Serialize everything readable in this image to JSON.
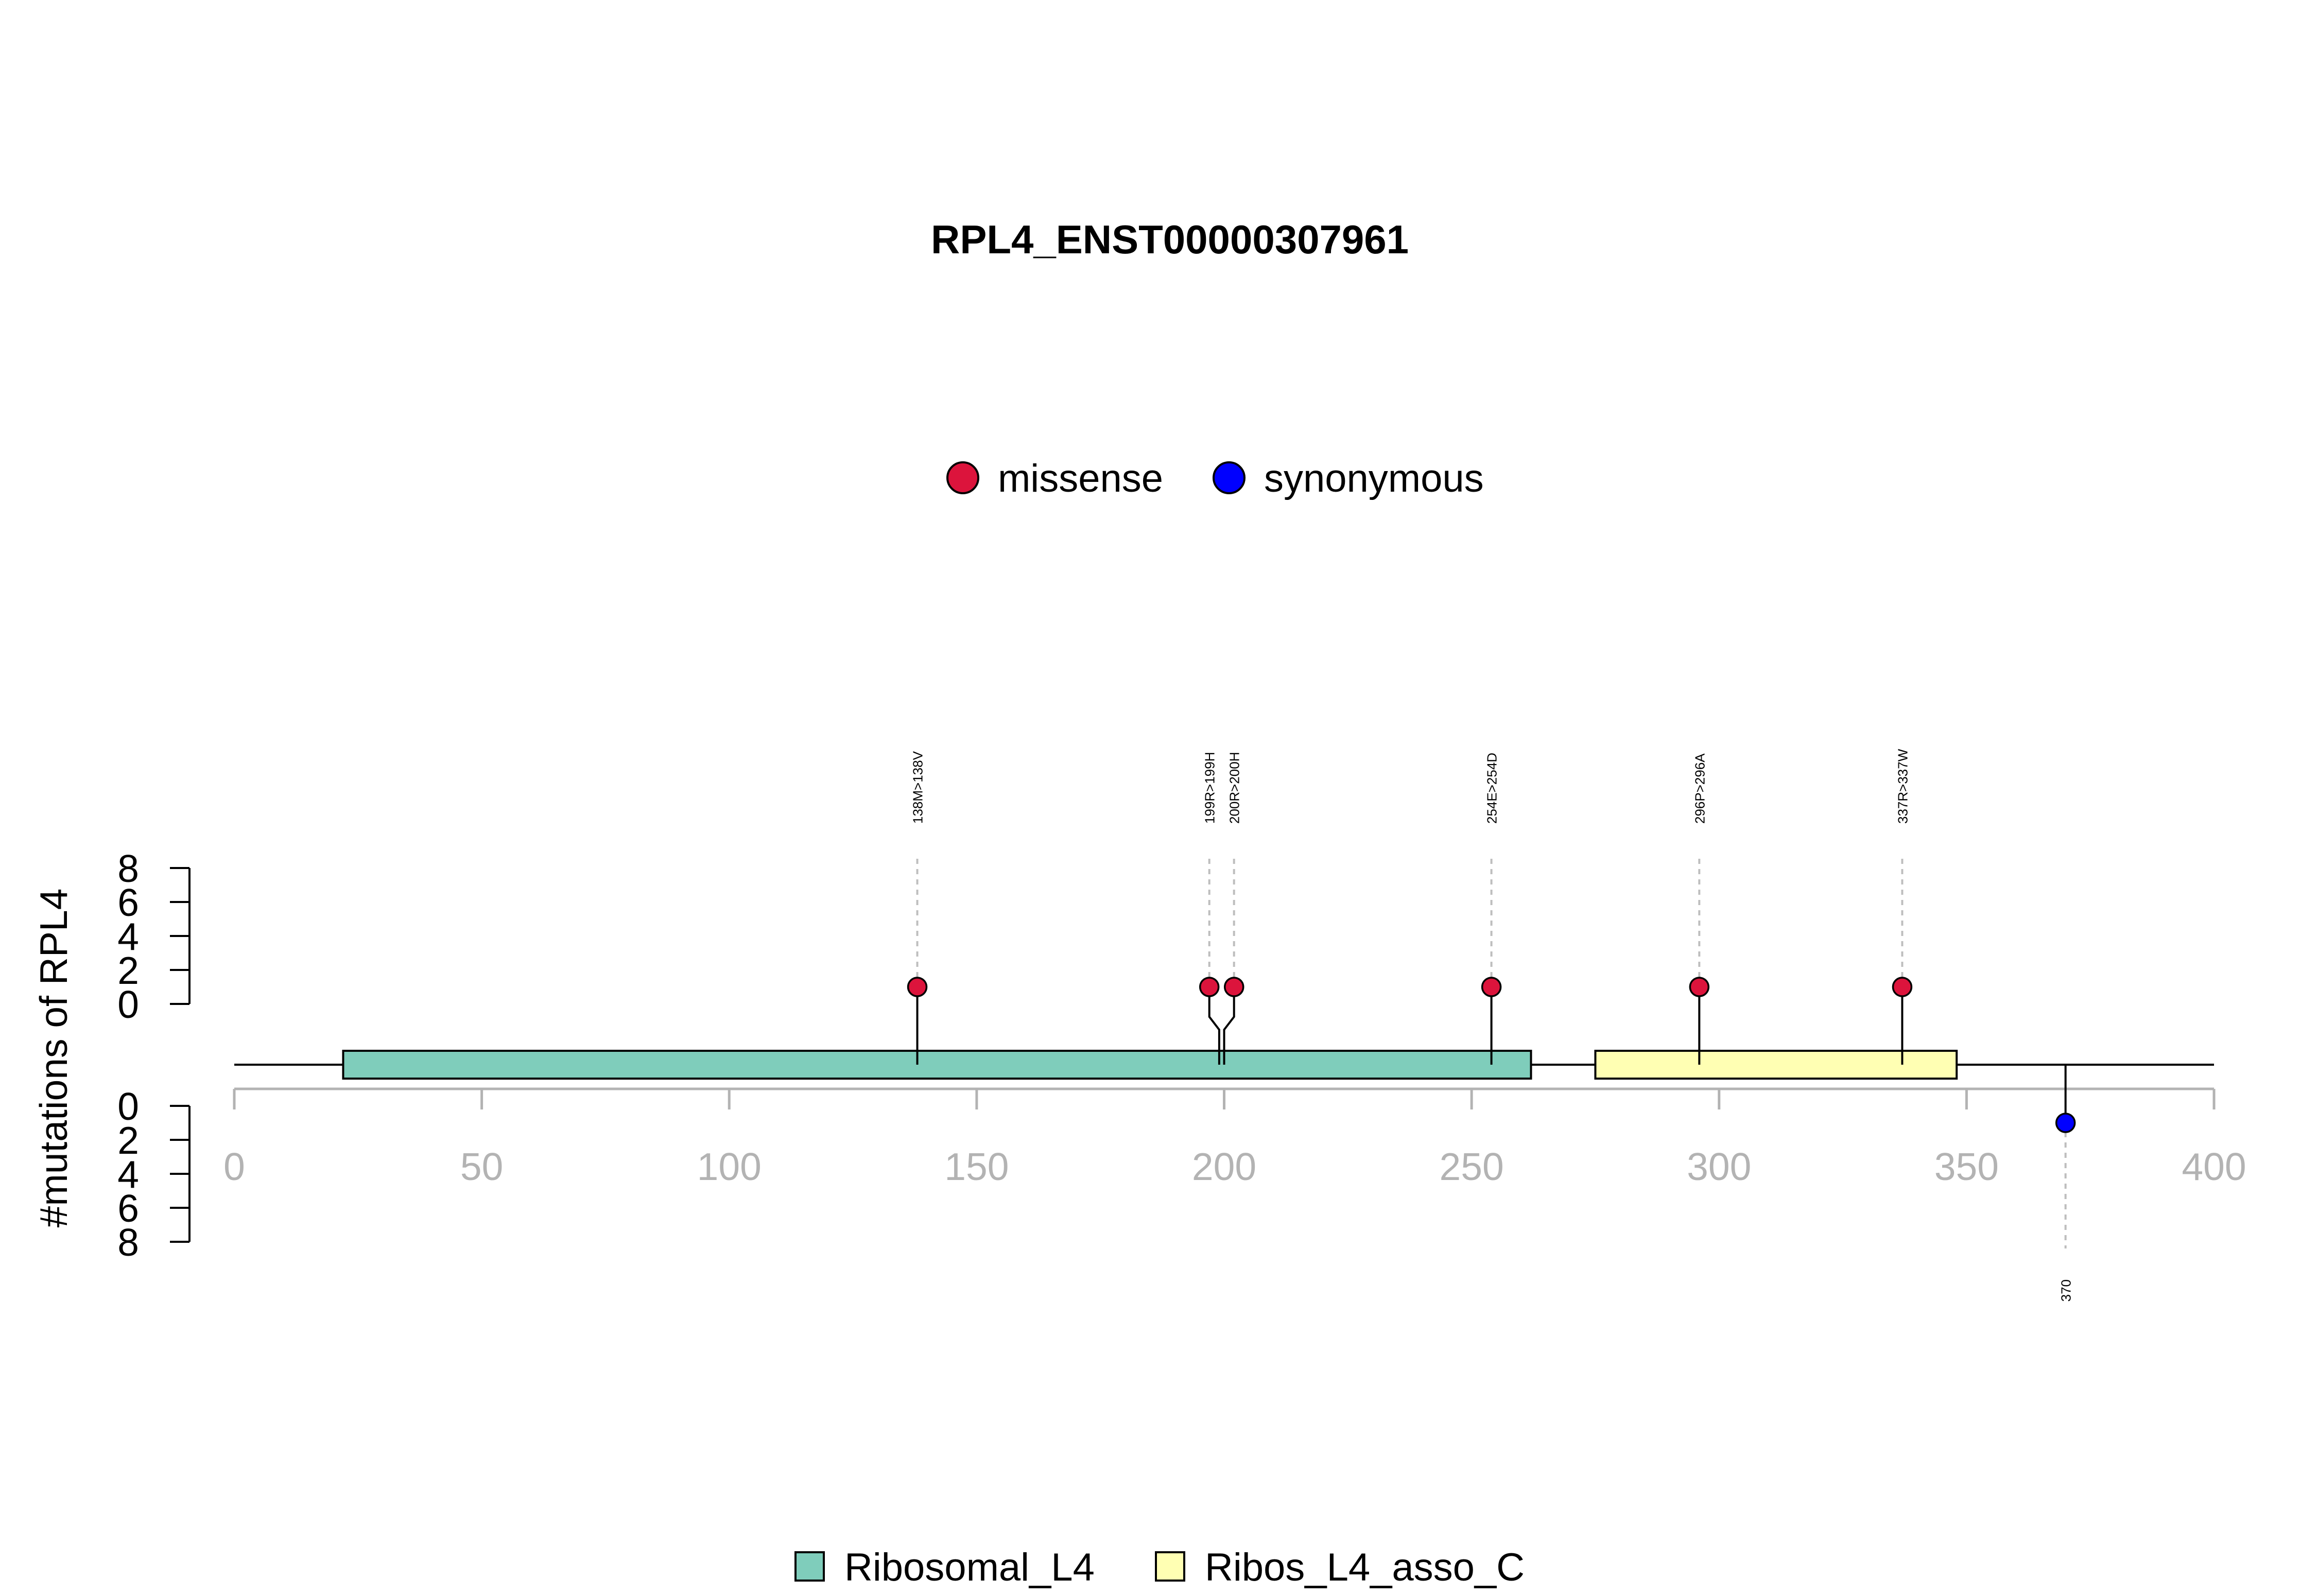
{
  "chart_data": {
    "type": "lollipop",
    "title": "RPL4_ENST00000307961",
    "ylabel": "#mutations of RPL4",
    "xlim": [
      0,
      400
    ],
    "x_ticks": [
      0,
      50,
      100,
      150,
      200,
      250,
      300,
      350,
      400
    ],
    "y_ticks_upper": [
      0,
      2,
      4,
      6,
      8
    ],
    "y_ticks_lower": [
      0,
      2,
      4,
      6,
      8
    ],
    "protein_length": 400,
    "legend_mutations": [
      {
        "name": "missense",
        "color": "#dc143c"
      },
      {
        "name": "synonymous",
        "color": "#0000ff"
      }
    ],
    "legend_domains": [
      {
        "name": "Ribosomal_L4",
        "color": "#7fcdbb"
      },
      {
        "name": "Ribos_L4_asso_C",
        "color": "#ffffb3"
      }
    ],
    "domains": [
      {
        "name": "Ribosomal_L4",
        "start": 22,
        "end": 262,
        "color": "#7fcdbb"
      },
      {
        "name": "Ribos_L4_asso_C",
        "start": 275,
        "end": 348,
        "color": "#ffffb3"
      }
    ],
    "mutations_upper": [
      {
        "label": "138M>138V",
        "position": 138,
        "count": 1,
        "type": "missense"
      },
      {
        "label": "199R>199H",
        "position": 199,
        "count": 1,
        "type": "missense"
      },
      {
        "label": "200R>200H",
        "position": 200,
        "count": 1,
        "type": "missense"
      },
      {
        "label": "254E>254D",
        "position": 254,
        "count": 1,
        "type": "missense"
      },
      {
        "label": "296P>296A",
        "position": 296,
        "count": 1,
        "type": "missense"
      },
      {
        "label": "337R>337W",
        "position": 337,
        "count": 1,
        "type": "missense"
      }
    ],
    "mutations_lower": [
      {
        "label": "370",
        "position": 370,
        "count": 1,
        "type": "synonymous"
      }
    ],
    "colors": {
      "missense": "#dc143c",
      "synonymous": "#0000ff",
      "axis_gray": "#b3b3b3",
      "guide_gray": "#bebebe"
    }
  }
}
